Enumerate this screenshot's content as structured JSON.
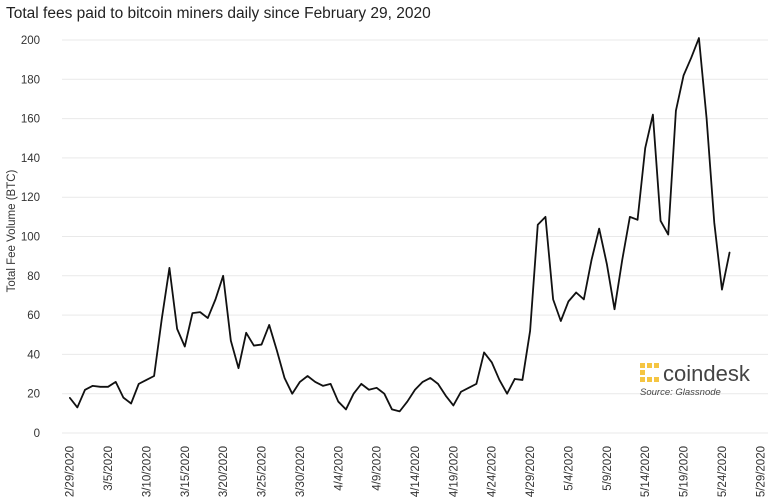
{
  "chart_data": {
    "type": "line",
    "title": "Total fees paid to bitcoin miners daily since February 29, 2020",
    "ylabel": "Total Fee Volume (BTC)",
    "xlabel": "",
    "ylim": [
      0,
      200
    ],
    "yticks": [
      0,
      20,
      40,
      60,
      80,
      100,
      120,
      140,
      160,
      180,
      200
    ],
    "xlim": [
      "2020-02-28",
      "2020-05-30"
    ],
    "xtick_labels": [
      "2/29/2020",
      "3/5/2020",
      "3/10/2020",
      "3/15/2020",
      "3/20/2020",
      "3/25/2020",
      "3/30/2020",
      "4/4/2020",
      "4/9/2020",
      "4/14/2020",
      "4/19/2020",
      "4/24/2020",
      "4/29/2020",
      "5/4/2020",
      "5/9/2020",
      "5/14/2020",
      "5/19/2020",
      "5/24/2020",
      "5/29/2020"
    ],
    "grid": true,
    "series": [
      {
        "x": [
          "2020-02-29",
          "2020-03-01",
          "2020-03-02",
          "2020-03-03",
          "2020-03-04",
          "2020-03-05",
          "2020-03-06",
          "2020-03-07",
          "2020-03-08",
          "2020-03-09",
          "2020-03-10",
          "2020-03-11",
          "2020-03-12",
          "2020-03-13",
          "2020-03-14",
          "2020-03-15",
          "2020-03-16",
          "2020-03-17",
          "2020-03-18",
          "2020-03-19",
          "2020-03-20",
          "2020-03-21",
          "2020-03-22",
          "2020-03-23",
          "2020-03-24",
          "2020-03-25",
          "2020-03-26",
          "2020-03-27",
          "2020-03-28",
          "2020-03-29",
          "2020-03-30",
          "2020-03-31",
          "2020-04-01",
          "2020-04-02",
          "2020-04-03",
          "2020-04-04",
          "2020-04-05",
          "2020-04-06",
          "2020-04-07",
          "2020-04-08",
          "2020-04-09",
          "2020-04-10",
          "2020-04-11",
          "2020-04-12",
          "2020-04-13",
          "2020-04-14",
          "2020-04-15",
          "2020-04-16",
          "2020-04-17",
          "2020-04-18",
          "2020-04-19",
          "2020-04-20",
          "2020-04-21",
          "2020-04-22",
          "2020-04-23",
          "2020-04-24",
          "2020-04-25",
          "2020-04-26",
          "2020-04-27",
          "2020-04-28",
          "2020-04-29",
          "2020-04-30",
          "2020-05-01",
          "2020-05-02",
          "2020-05-03",
          "2020-05-04",
          "2020-05-05",
          "2020-05-06",
          "2020-05-07",
          "2020-05-08",
          "2020-05-09",
          "2020-05-10",
          "2020-05-11",
          "2020-05-12",
          "2020-05-13",
          "2020-05-14",
          "2020-05-15",
          "2020-05-16",
          "2020-05-17",
          "2020-05-18",
          "2020-05-19",
          "2020-05-20",
          "2020-05-21",
          "2020-05-22",
          "2020-05-23",
          "2020-05-24",
          "2020-05-25"
        ],
        "y": [
          18,
          13,
          22,
          24,
          23.5,
          23.5,
          26,
          18,
          15,
          25,
          27,
          29,
          58,
          84,
          53,
          44,
          61,
          61.5,
          58.5,
          68,
          80,
          47,
          33,
          51,
          44.5,
          45,
          55,
          42,
          28,
          20,
          26,
          29,
          26,
          24,
          25,
          16,
          12,
          20,
          25,
          22,
          23,
          20,
          12,
          11,
          16,
          22,
          26,
          28,
          25,
          19,
          14,
          21,
          23,
          25,
          41,
          36,
          27,
          20,
          27.5,
          27,
          52,
          106,
          110,
          68,
          57,
          67,
          71.5,
          68,
          88,
          104,
          86,
          63,
          88,
          110,
          108.5,
          145,
          162,
          108,
          101,
          164,
          182,
          191,
          201,
          160,
          107,
          73,
          92
        ]
      }
    ]
  },
  "branding": {
    "name": "coindesk",
    "source": "Source: Glassnode",
    "brand_color": "#f5c542"
  }
}
